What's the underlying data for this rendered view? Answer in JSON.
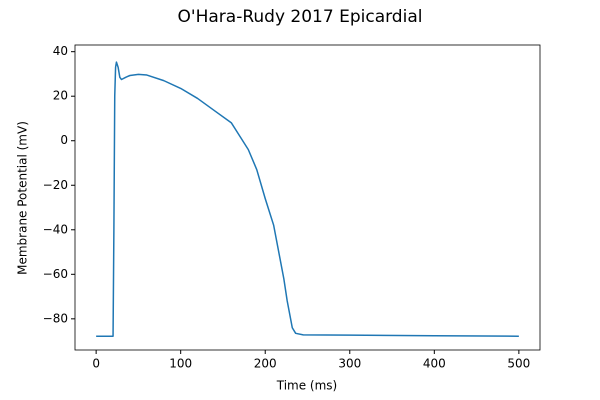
{
  "chart_data": {
    "type": "line",
    "title": "O'Hara-Rudy 2017 Epicardial",
    "x_label": "Time (ms)",
    "y_label": "Membrane Potential (mV)",
    "xlim": [
      -25,
      525
    ],
    "ylim": [
      -94,
      43
    ],
    "xticks": [
      0,
      100,
      200,
      300,
      400,
      500
    ],
    "yticks": [
      {
        "value": -80,
        "label": "−80"
      },
      {
        "value": -60,
        "label": "−60"
      },
      {
        "value": -40,
        "label": "−40"
      },
      {
        "value": -20,
        "label": "−20"
      },
      0,
      20,
      40
    ],
    "x": [
      0,
      20,
      21,
      22,
      23,
      24,
      26,
      28,
      30,
      35,
      40,
      50,
      60,
      80,
      100,
      120,
      140,
      160,
      170,
      180,
      190,
      200,
      210,
      217,
      222,
      226,
      229,
      232,
      236,
      245,
      300,
      400,
      500
    ],
    "series": [
      {
        "color": "#1f77b4",
        "values": [
          -87.8,
          -87.8,
          -40,
          20,
          33,
          35.3,
          33,
          28.5,
          27.5,
          28.5,
          29.3,
          29.8,
          29.5,
          27,
          23.5,
          19,
          13.5,
          8,
          2,
          -4,
          -13,
          -26,
          -38,
          -52,
          -62,
          -72,
          -78,
          -84,
          -86.5,
          -87.2,
          -87.3,
          -87.6,
          -87.8
        ]
      }
    ]
  }
}
